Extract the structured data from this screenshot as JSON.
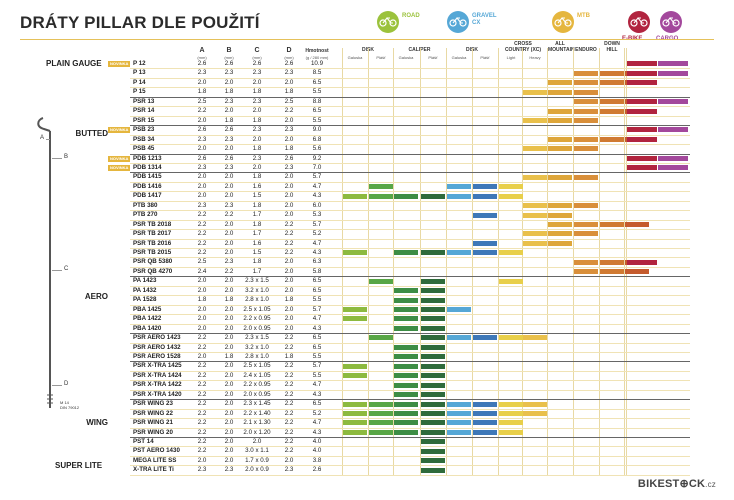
{
  "title": "DRÁTY PILLAR DLE POUŽITÍ",
  "categories": [
    {
      "label": "ROAD",
      "color": "#9bc23c",
      "bike_color": "#9bc23c"
    },
    {
      "label": "GRAVEL\nCX",
      "color": "#55a7d6",
      "bike_color": "#55a7d6"
    },
    {
      "label": "MTB",
      "color": "#e5b63e",
      "bike_color": "#e5b63e"
    },
    {
      "label": "E-BIKE",
      "color": "#b1243f",
      "bike_color": "#b1243f"
    },
    {
      "label": "CARGO",
      "color": "#a3489c",
      "bike_color": "#a3489c"
    }
  ],
  "headers": {
    "dims": [
      {
        "label": "A",
        "unit": "(mm)"
      },
      {
        "label": "B",
        "unit": "(mm)"
      },
      {
        "label": "C",
        "unit": "(mm)"
      },
      {
        "label": "D",
        "unit": "(mm)"
      },
      {
        "label": "Hmotnost",
        "unit": "(g / 280 mm)"
      }
    ],
    "uses": [
      {
        "group": "DISK",
        "subs": [
          "Galuska",
          "Plášť"
        ]
      },
      {
        "group": "CALIPER",
        "subs": [
          "Galuska",
          "Plášť"
        ]
      },
      {
        "group": "DISK",
        "subs": [
          "Galuska",
          "Plášť"
        ]
      },
      {
        "group": "CROSS\nCOUNTRY (XC)",
        "subs": [
          "Light",
          "Heavy"
        ]
      },
      {
        "group": "ALL\nMOUNTAIN",
        "subs": []
      },
      {
        "group": "ENDURO",
        "subs": []
      },
      {
        "group": "DOWN\nHILL",
        "subs": []
      },
      {
        "group": "",
        "subs": []
      },
      {
        "group": "",
        "subs": []
      }
    ]
  },
  "badge_text": "NOVINKA",
  "groups": [
    "PLAIN GAUGE",
    "BUTTED",
    "AERO",
    "WING",
    "SUPER LITE"
  ],
  "spoke_labels": [
    "A",
    "B",
    "C",
    "D"
  ],
  "spoke_note": "M 14\nDIN 79012",
  "logo": {
    "main": "BIKEST⊕CK",
    "suffix": ".cz"
  },
  "rows": [
    {
      "name": "P 12",
      "a": "2.6",
      "b": "2.6",
      "c": "2.6",
      "d": "2.6",
      "w": "10.9",
      "badge": true,
      "bars": [
        0,
        0,
        0,
        0,
        0,
        0,
        0,
        0,
        0,
        0,
        0,
        0,
        1,
        1
      ]
    },
    {
      "name": "P 13",
      "a": "2.3",
      "b": "2.3",
      "c": "2.3",
      "d": "2.3",
      "w": "8.5",
      "bars": [
        0,
        0,
        0,
        0,
        0,
        0,
        0,
        0,
        0,
        1,
        1,
        1,
        1,
        1
      ]
    },
    {
      "name": "P 14",
      "a": "2.0",
      "b": "2.0",
      "c": "2.0",
      "d": "2.0",
      "w": "6.5",
      "bars": [
        0,
        0,
        0,
        0,
        0,
        0,
        0,
        0,
        1,
        1,
        1,
        1,
        1,
        0
      ]
    },
    {
      "name": "P 15",
      "a": "1.8",
      "b": "1.8",
      "c": "1.8",
      "d": "1.8",
      "w": "5.5",
      "bars": [
        0,
        0,
        0,
        0,
        0,
        0,
        0,
        1,
        1,
        1,
        0,
        0,
        0,
        0
      ]
    },
    {
      "name": "PSR 13",
      "a": "2.5",
      "b": "2.3",
      "c": "2.3",
      "d": "2.5",
      "w": "8.8",
      "bars": [
        0,
        0,
        0,
        0,
        0,
        0,
        0,
        0,
        0,
        1,
        1,
        1,
        1,
        1
      ]
    },
    {
      "name": "PSR 14",
      "a": "2.2",
      "b": "2.0",
      "c": "2.0",
      "d": "2.2",
      "w": "6.5",
      "bars": [
        0,
        0,
        0,
        0,
        0,
        0,
        0,
        0,
        1,
        1,
        1,
        1,
        1,
        0
      ]
    },
    {
      "name": "PSR 15",
      "a": "2.0",
      "b": "1.8",
      "c": "1.8",
      "d": "2.0",
      "w": "5.5",
      "bars": [
        0,
        0,
        0,
        0,
        0,
        0,
        0,
        1,
        1,
        1,
        0,
        0,
        0,
        0
      ]
    },
    {
      "name": "PSB 23",
      "a": "2.6",
      "b": "2.6",
      "c": "2.3",
      "d": "2.3",
      "w": "9.0",
      "badge": true,
      "bars": [
        0,
        0,
        0,
        0,
        0,
        0,
        0,
        0,
        0,
        0,
        0,
        0,
        1,
        1
      ]
    },
    {
      "name": "PSB 34",
      "a": "2.3",
      "b": "2.3",
      "c": "2.0",
      "d": "2.0",
      "w": "6.8",
      "bars": [
        0,
        0,
        0,
        0,
        0,
        0,
        0,
        0,
        1,
        1,
        1,
        1,
        1,
        0
      ]
    },
    {
      "name": "PSB 45",
      "a": "2.0",
      "b": "2.0",
      "c": "1.8",
      "d": "1.8",
      "w": "5.6",
      "bars": [
        0,
        0,
        0,
        0,
        0,
        0,
        0,
        1,
        1,
        1,
        0,
        0,
        0,
        0
      ]
    },
    {
      "name": "PDB 1213",
      "a": "2.6",
      "b": "2.6",
      "c": "2.3",
      "d": "2.6",
      "w": "9.2",
      "badge": true,
      "bars": [
        0,
        0,
        0,
        0,
        0,
        0,
        0,
        0,
        0,
        0,
        0,
        0,
        1,
        1
      ]
    },
    {
      "name": "PDB 1314",
      "a": "2.3",
      "b": "2.3",
      "c": "2.0",
      "d": "2.3",
      "w": "7.0",
      "badge": true,
      "bars": [
        0,
        0,
        0,
        0,
        0,
        0,
        0,
        0,
        0,
        0,
        0,
        0,
        1,
        1
      ]
    },
    {
      "name": "PDB 1415",
      "a": "2.0",
      "b": "2.0",
      "c": "1.8",
      "d": "2.0",
      "w": "5.7",
      "bars": [
        0,
        0,
        0,
        0,
        0,
        0,
        0,
        1,
        1,
        1,
        0,
        0,
        0,
        0
      ]
    },
    {
      "name": "PDB 1416",
      "a": "2.0",
      "b": "2.0",
      "c": "1.6",
      "d": "2.0",
      "w": "4.7",
      "bars": [
        0,
        1,
        0,
        0,
        1,
        1,
        1,
        0,
        0,
        0,
        0,
        0,
        0,
        0
      ]
    },
    {
      "name": "PDB 1417",
      "a": "2.0",
      "b": "2.0",
      "c": "1.5",
      "d": "2.0",
      "w": "4.3",
      "bars": [
        1,
        1,
        1,
        1,
        1,
        1,
        1,
        0,
        0,
        0,
        0,
        0,
        0,
        0
      ]
    },
    {
      "name": "PTB 380",
      "a": "2.3",
      "b": "2.3",
      "c": "1.8",
      "d": "2.0",
      "w": "6.0",
      "bars": [
        0,
        0,
        0,
        0,
        0,
        0,
        0,
        1,
        1,
        1,
        0,
        0,
        0,
        0
      ]
    },
    {
      "name": "PTB 270",
      "a": "2.2",
      "b": "2.2",
      "c": "1.7",
      "d": "2.0",
      "w": "5.3",
      "bars": [
        0,
        0,
        0,
        0,
        0,
        1,
        0,
        1,
        1,
        0,
        0,
        0,
        0,
        0
      ]
    },
    {
      "name": "PSR TB 2018",
      "a": "2.2",
      "b": "2.0",
      "c": "1.8",
      "d": "2.2",
      "w": "5.7",
      "bars": [
        0,
        0,
        0,
        0,
        0,
        0,
        0,
        0,
        1,
        1,
        1,
        1,
        0,
        0
      ]
    },
    {
      "name": "PSR TB 2017",
      "a": "2.2",
      "b": "2.0",
      "c": "1.7",
      "d": "2.2",
      "w": "5.2",
      "bars": [
        0,
        0,
        0,
        0,
        0,
        0,
        0,
        1,
        1,
        1,
        0,
        0,
        0,
        0
      ]
    },
    {
      "name": "PSR TB 2016",
      "a": "2.2",
      "b": "2.0",
      "c": "1.6",
      "d": "2.2",
      "w": "4.7",
      "bars": [
        0,
        0,
        0,
        0,
        0,
        1,
        0,
        1,
        1,
        0,
        0,
        0,
        0,
        0
      ]
    },
    {
      "name": "PSR TB 2015",
      "a": "2.2",
      "b": "2.0",
      "c": "1.5",
      "d": "2.2",
      "w": "4.3",
      "bars": [
        1,
        0,
        1,
        1,
        1,
        1,
        1,
        0,
        0,
        0,
        0,
        0,
        0,
        0
      ]
    },
    {
      "name": "PSR QB 5380",
      "a": "2.5",
      "b": "2.3",
      "c": "1.8",
      "d": "2.0",
      "w": "6.3",
      "bars": [
        0,
        0,
        0,
        0,
        0,
        0,
        0,
        0,
        0,
        1,
        1,
        1,
        1,
        0
      ]
    },
    {
      "name": "PSR QB 4270",
      "a": "2.4",
      "b": "2.2",
      "c": "1.7",
      "d": "2.0",
      "w": "5.8",
      "bars": [
        0,
        0,
        0,
        0,
        0,
        0,
        0,
        0,
        0,
        1,
        1,
        1,
        0,
        0
      ]
    },
    {
      "name": "PA 1423",
      "a": "2.0",
      "b": "2.0",
      "c": "2.3 x 1.5",
      "d": "2.0",
      "w": "6.5",
      "bars": [
        0,
        1,
        0,
        1,
        0,
        0,
        1,
        0,
        0,
        0,
        0,
        0,
        0,
        0
      ]
    },
    {
      "name": "PA 1432",
      "a": "2.0",
      "b": "2.0",
      "c": "3.2 x 1.0",
      "d": "2.0",
      "w": "6.5",
      "bars": [
        0,
        0,
        1,
        1,
        0,
        0,
        0,
        0,
        0,
        0,
        0,
        0,
        0,
        0
      ]
    },
    {
      "name": "PA 1528",
      "a": "1.8",
      "b": "1.8",
      "c": "2.8 x 1.0",
      "d": "1.8",
      "w": "5.5",
      "bars": [
        0,
        0,
        1,
        1,
        0,
        0,
        0,
        0,
        0,
        0,
        0,
        0,
        0,
        0
      ]
    },
    {
      "name": "PBA 1425",
      "a": "2.0",
      "b": "2.0",
      "c": "2.5 x 1.05",
      "d": "2.0",
      "w": "5.7",
      "bars": [
        1,
        0,
        1,
        1,
        1,
        0,
        0,
        0,
        0,
        0,
        0,
        0,
        0,
        0
      ]
    },
    {
      "name": "PBA 1422",
      "a": "2.0",
      "b": "2.0",
      "c": "2.2 x 0.95",
      "d": "2.0",
      "w": "4.7",
      "bars": [
        1,
        0,
        1,
        1,
        0,
        0,
        0,
        0,
        0,
        0,
        0,
        0,
        0,
        0
      ]
    },
    {
      "name": "PBA 1420",
      "a": "2.0",
      "b": "2.0",
      "c": "2.0 x 0.95",
      "d": "2.0",
      "w": "4.3",
      "bars": [
        0,
        0,
        1,
        1,
        0,
        0,
        0,
        0,
        0,
        0,
        0,
        0,
        0,
        0
      ]
    },
    {
      "name": "PSR AERO 1423",
      "a": "2.2",
      "b": "2.0",
      "c": "2.3 x 1.5",
      "d": "2.2",
      "w": "6.5",
      "bars": [
        0,
        1,
        0,
        1,
        1,
        1,
        1,
        1,
        0,
        0,
        0,
        0,
        0,
        0
      ]
    },
    {
      "name": "PSR AERO 1432",
      "a": "2.2",
      "b": "2.0",
      "c": "3.2 x 1.0",
      "d": "2.2",
      "w": "6.5",
      "bars": [
        0,
        0,
        1,
        1,
        0,
        0,
        0,
        0,
        0,
        0,
        0,
        0,
        0,
        0
      ]
    },
    {
      "name": "PSR AERO 1528",
      "a": "2.0",
      "b": "1.8",
      "c": "2.8 x 1.0",
      "d": "1.8",
      "w": "5.5",
      "bars": [
        0,
        0,
        1,
        1,
        0,
        0,
        0,
        0,
        0,
        0,
        0,
        0,
        0,
        0
      ]
    },
    {
      "name": "PSR X-TRA 1425",
      "a": "2.2",
      "b": "2.0",
      "c": "2.5 x 1.05",
      "d": "2.2",
      "w": "5.7",
      "bars": [
        1,
        0,
        1,
        1,
        0,
        0,
        0,
        0,
        0,
        0,
        0,
        0,
        0,
        0
      ]
    },
    {
      "name": "PSR X-TRA 1424",
      "a": "2.2",
      "b": "2.0",
      "c": "2.4 x 1.05",
      "d": "2.2",
      "w": "5.5",
      "bars": [
        1,
        0,
        1,
        1,
        0,
        0,
        0,
        0,
        0,
        0,
        0,
        0,
        0,
        0
      ]
    },
    {
      "name": "PSR X-TRA 1422",
      "a": "2.2",
      "b": "2.0",
      "c": "2.2 x 0.95",
      "d": "2.2",
      "w": "4.7",
      "bars": [
        0,
        0,
        1,
        1,
        0,
        0,
        0,
        0,
        0,
        0,
        0,
        0,
        0,
        0
      ]
    },
    {
      "name": "PSR X-TRA 1420",
      "a": "2.2",
      "b": "2.0",
      "c": "2.0 x 0.95",
      "d": "2.2",
      "w": "4.3",
      "bars": [
        0,
        0,
        1,
        1,
        0,
        0,
        0,
        0,
        0,
        0,
        0,
        0,
        0,
        0
      ]
    },
    {
      "name": "PSR WING 23",
      "a": "2.2",
      "b": "2.0",
      "c": "2.3 x 1.45",
      "d": "2.2",
      "w": "6.5",
      "bars": [
        1,
        1,
        1,
        1,
        1,
        1,
        1,
        1,
        0,
        0,
        0,
        0,
        0,
        0
      ]
    },
    {
      "name": "PSR WING 22",
      "a": "2.2",
      "b": "2.0",
      "c": "2.2 x 1.40",
      "d": "2.2",
      "w": "5.2",
      "bars": [
        1,
        1,
        1,
        1,
        1,
        1,
        1,
        1,
        0,
        0,
        0,
        0,
        0,
        0
      ]
    },
    {
      "name": "PSR WING 21",
      "a": "2.2",
      "b": "2.0",
      "c": "2.1 x 1.30",
      "d": "2.2",
      "w": "4.7",
      "bars": [
        1,
        1,
        1,
        1,
        1,
        1,
        1,
        0,
        0,
        0,
        0,
        0,
        0,
        0
      ]
    },
    {
      "name": "PSR WING 20",
      "a": "2.2",
      "b": "2.0",
      "c": "2.0 x 1.20",
      "d": "2.2",
      "w": "4.3",
      "bars": [
        1,
        1,
        1,
        1,
        1,
        1,
        1,
        0,
        0,
        0,
        0,
        0,
        0,
        0
      ]
    },
    {
      "name": "PST 14",
      "a": "2.2",
      "b": "2.0",
      "c": "2.0",
      "d": "2.2",
      "w": "4.0",
      "bars": [
        0,
        0,
        0,
        1,
        0,
        0,
        0,
        0,
        0,
        0,
        0,
        0,
        0,
        0
      ]
    },
    {
      "name": "PST AERO 1430",
      "a": "2.2",
      "b": "2.0",
      "c": "3.0 x 1.1",
      "d": "2.2",
      "w": "4.0",
      "bars": [
        0,
        0,
        0,
        1,
        0,
        0,
        0,
        0,
        0,
        0,
        0,
        0,
        0,
        0
      ]
    },
    {
      "name": "MEGA LITE SS",
      "a": "2.0",
      "b": "2.0",
      "c": "1.7 x 0.9",
      "d": "2.0",
      "w": "3.8",
      "bars": [
        0,
        0,
        0,
        1,
        0,
        0,
        0,
        0,
        0,
        0,
        0,
        0,
        0,
        0
      ]
    },
    {
      "name": "X-TRA LITE Ti",
      "a": "2.3",
      "b": "2.3",
      "c": "2.0 x 0.9",
      "d": "2.3",
      "w": "2.6",
      "bars": [
        0,
        0,
        0,
        1,
        0,
        0,
        0,
        0,
        0,
        0,
        0,
        0,
        0,
        0
      ]
    }
  ],
  "bar_colors": [
    "#8dba3f",
    "#58a646",
    "#3d8d45",
    "#2f6b3b",
    "#55a7d6",
    "#3e78b8",
    "#e8cf4a",
    "#e9c04b",
    "#dea63a",
    "#d98f3a",
    "#d07a32",
    "#c55b2d",
    "#b1243f",
    "#a3489c"
  ]
}
